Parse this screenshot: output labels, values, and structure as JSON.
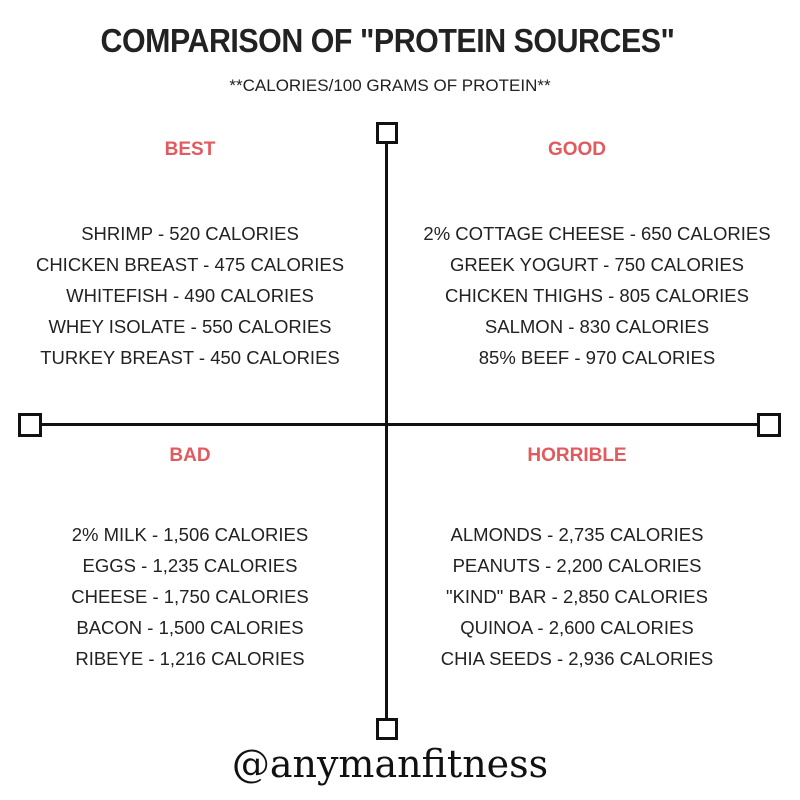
{
  "title": "COMPARISON OF \"PROTEIN SOURCES\"",
  "subtitle": "**CALORIES/100 GRAMS OF PROTEIN**",
  "accent_color": "#e05a5e",
  "quadrants": {
    "best": {
      "label": "BEST",
      "items": [
        "SHRIMP - 520 CALORIES",
        "CHICKEN BREAST - 475 CALORIES",
        "WHITEFISH - 490 CALORIES",
        "WHEY ISOLATE - 550 CALORIES",
        "TURKEY BREAST - 450 CALORIES"
      ]
    },
    "good": {
      "label": "GOOD",
      "items": [
        "2% COTTAGE CHEESE - 650 CALORIES",
        "GREEK YOGURT - 750 CALORIES",
        "CHICKEN THIGHS - 805 CALORIES",
        "SALMON - 830 CALORIES",
        "85% BEEF - 970 CALORIES"
      ]
    },
    "bad": {
      "label": "BAD",
      "items": [
        "2% MILK - 1,506 CALORIES",
        "EGGS - 1,235 CALORIES",
        "CHEESE - 1,750 CALORIES",
        "BACON - 1,500 CALORIES",
        "RIBEYE - 1,216 CALORIES"
      ]
    },
    "horrible": {
      "label": "HORRIBLE",
      "items": [
        "ALMONDS - 2,735 CALORIES",
        "PEANUTS - 2,200 CALORIES",
        "\"KIND\" BAR - 2,850 CALORIES",
        "QUINOA - 2,600 CALORIES",
        "CHIA SEEDS - 2,936 CALORIES"
      ]
    }
  },
  "handle": "@anymanfitness"
}
